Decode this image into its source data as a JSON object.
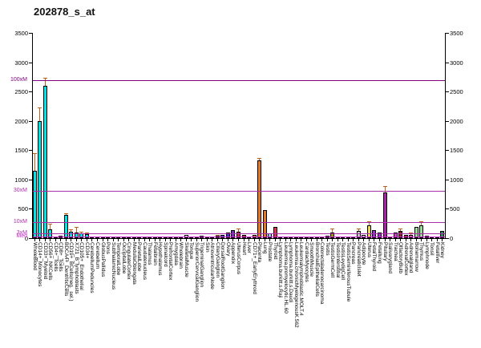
{
  "title": "202878_s_at",
  "chart_data": {
    "type": "bar",
    "title": "202878_s_at",
    "xlabel": "",
    "ylabel": "",
    "ylim": [
      0,
      3500
    ],
    "yticks": [
      0,
      500,
      1000,
      1500,
      2000,
      2500,
      3000,
      3500
    ],
    "grid": true,
    "legend": "none",
    "error_bar_color": "#C06018",
    "reference_lines": [
      {
        "label": "100xM",
        "value": 2700,
        "color": "#800080"
      },
      {
        "label": "30xM",
        "value": 800,
        "color": "#AA30AA"
      },
      {
        "label": "10xM",
        "value": 270,
        "color": "#AA30AA"
      },
      {
        "label": "3xM",
        "value": 85,
        "color": "#AA30AA"
      },
      {
        "label": "Med",
        "value": 27,
        "color": "#CC22CC"
      }
    ],
    "categories": [
      "WholeBlood",
      "CD14+_Monocytes",
      "CD33+_Myeloid",
      "CD56+_NKCells",
      "CD4+_Tcells",
      "CD8+_Tcells",
      "BDCA4+_DentriticCells",
      "CD19+_BCells(neg._sel.)",
      "X721_B_lymphoblasts",
      "CD105+_Endothelial",
      "CD34+",
      "CerebellumPeduncles",
      "Cerebellum",
      "GlobusPallidus",
      "Pons",
      "SubthalamicNucleus",
      "TemporalLobe",
      "OccipitalLobe",
      "CingulateCortex",
      "MedullaOblongata",
      "ParietalLobe",
      "Caudatenucleus",
      "Thalamus",
      "Fetalbrain",
      "Hypothalamus",
      "Spinalcord",
      "PrefrontalCortex",
      "Amygdala",
      "Wholebrain",
      "SkeletalMuscle",
      "Tongue",
      "SuperiorCervicalGanglion",
      "TrigeminalGanglion",
      "Skin",
      "AtrioventricularNode",
      "CiliaryGanglion",
      "DorsalRootGanglion",
      "Ovary",
      "Appendix",
      "UterusCorpus",
      "Heart",
      "Liver",
      "CD71+_EarlyErythroid",
      "Placenta",
      "Lung",
      "Prostate",
      "Thyroid",
      "Lymphoma.burkitt.s.Raji",
      "Leukemia.promyelocytic.HL.60",
      "Lymphoma.burkitt.s.Daudi",
      "Leukemia.chronicMyelogenousK.562",
      "Leukemialymphoblastic.MOLT.4",
      "CardiacMyocytes",
      "SmoothMuscle",
      "BronchialEpithelialCells",
      "Colorectaladenocarcinoma",
      "Testis",
      "TestisGermCell",
      "TestisInterstitial",
      "TestisLeydigCell",
      "TestisSeminiferousTubule",
      "Pancreas",
      "PancreaticIslet",
      "Adipocyte",
      "Uterus",
      "FetalThyroid",
      "Fetallung",
      "Pituitary",
      "Salivarygland",
      "Trachea",
      "OlfactoryBulb",
      "AdrenalCortex",
      "Adrenalgland",
      "Bonemarrow",
      "Thymus",
      "Lymphnode",
      "Tonsil",
      "Fetalliver",
      "Kidney"
    ],
    "values": [
      1150,
      2000,
      2600,
      150,
      30,
      35,
      400,
      110,
      95,
      85,
      70,
      12,
      15,
      10,
      12,
      10,
      8,
      12,
      18,
      10,
      10,
      12,
      8,
      20,
      12,
      20,
      10,
      10,
      8,
      55,
      30,
      25,
      45,
      25,
      20,
      35,
      60,
      90,
      135,
      110,
      60,
      30,
      60,
      1320,
      480,
      80,
      185,
      12,
      10,
      15,
      12,
      15,
      20,
      25,
      15,
      12,
      40,
      95,
      30,
      15,
      12,
      20,
      120,
      60,
      225,
      135,
      100,
      785,
      30,
      90,
      124,
      50,
      60,
      185,
      225,
      40,
      30,
      25,
      120
    ],
    "errors_hi": [
      1450,
      2230,
      2730,
      240,
      null,
      null,
      425,
      155,
      185,
      115,
      95,
      null,
      null,
      null,
      null,
      null,
      null,
      null,
      null,
      null,
      null,
      null,
      null,
      null,
      null,
      null,
      null,
      null,
      null,
      null,
      null,
      null,
      null,
      null,
      null,
      55,
      null,
      null,
      null,
      165,
      null,
      null,
      null,
      1365,
      null,
      null,
      null,
      null,
      null,
      null,
      null,
      null,
      null,
      null,
      null,
      null,
      null,
      160,
      null,
      null,
      null,
      null,
      160,
      null,
      292,
      null,
      null,
      890,
      null,
      null,
      170,
      null,
      100,
      null,
      292,
      null,
      null,
      null,
      null
    ],
    "colors": [
      "#00E6E6",
      "#00E6E6",
      "#00E6E6",
      "#00E6E6",
      "#00E6E6",
      "#00E6E6",
      "#00E6E6",
      "#00E6E6",
      "#00E6E6",
      "#00E6E6",
      "#00E6E6",
      "#000099",
      "#000099",
      "#000099",
      "#000099",
      "#000099",
      "#000099",
      "#000099",
      "#8B0000",
      "#000099",
      "#000099",
      "#000099",
      "#000099",
      "#8B0000",
      "#000099",
      "#8B0000",
      "#000099",
      "#000099",
      "#000099",
      "#FFFFFF",
      "#FFAACC",
      "#993333",
      "#7B2222",
      "#666666",
      "#CC6699",
      "#CC4488",
      "#3344CC",
      "#3333BB",
      "#7B2FBE",
      "#C22A50",
      "#B22222",
      "#8B0000",
      "#E87722",
      "#E87722",
      "#E87722",
      "#99CCEE",
      "#DC3050",
      "#999999",
      "#888888",
      "#999999",
      "#888888",
      "#999999",
      "#884444",
      "#8833AA",
      "#AAAAAA",
      "#999999",
      "#808000",
      "#999900",
      "#808000",
      "#808000",
      "#808000",
      "#BBBBBB",
      "#C8C8C8",
      "#DDDDDD",
      "#E8D84A",
      "#9932CC",
      "#9932CC",
      "#AA22AA",
      "#999999",
      "#CC44CC",
      "#882222",
      "#AA2222",
      "#DD7799",
      "#99DD99",
      "#99DD99",
      "#99CC99",
      "#777777",
      "#882222",
      "#2E8B57"
    ]
  }
}
